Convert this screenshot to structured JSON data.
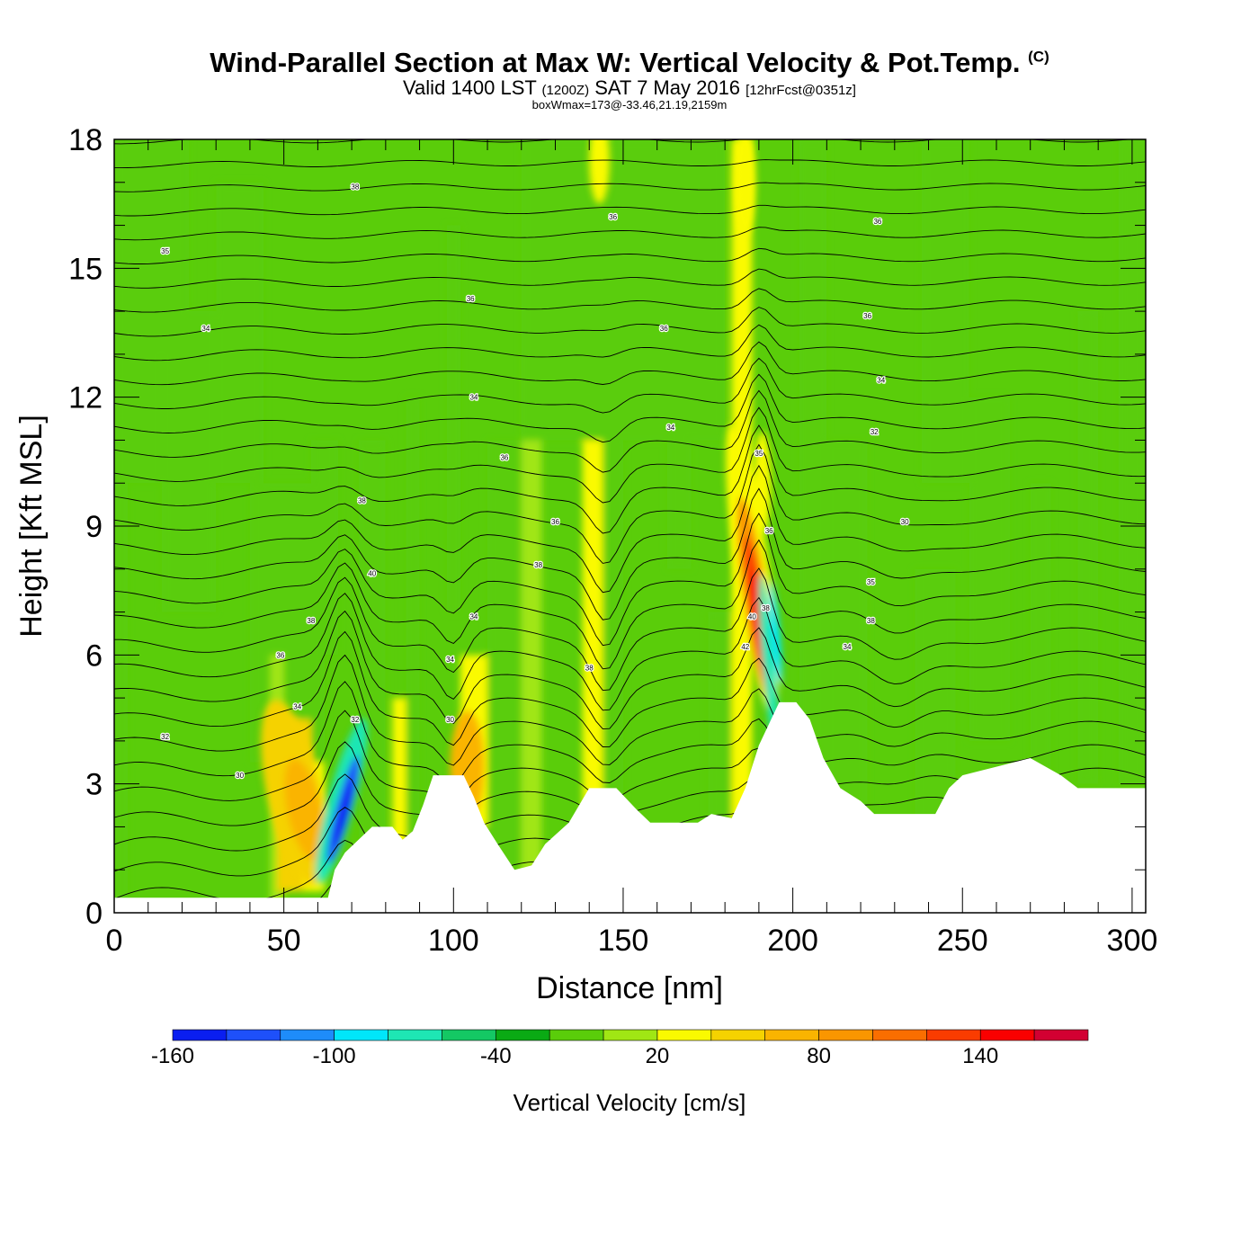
{
  "header": {
    "title": "Wind-Parallel Section at Max W: Vertical Velocity & Pot.Temp.",
    "copyright": "(C)",
    "valid_prefix": "Valid 1400 LST",
    "valid_utc": "(1200Z)",
    "valid_date": "SAT 7 May 2016",
    "forecast": "[12hrFcst@0351z]",
    "box_info": "boxWmax=173@-33.46,21.19,2159m"
  },
  "chart_data": {
    "type": "heatmap",
    "xlabel": "Distance [nm]",
    "ylabel": "Height [Kft MSL]",
    "xlim": [
      0,
      304
    ],
    "ylim": [
      0,
      18
    ],
    "x_ticks": [
      0,
      50,
      100,
      150,
      200,
      250,
      300
    ],
    "y_ticks": [
      0,
      3,
      6,
      9,
      12,
      15,
      18
    ],
    "colorbar": {
      "label": "Vertical Velocity [cm/s]",
      "range": [
        -160,
        180
      ],
      "bin_width": 20,
      "tick_values": [
        -160,
        -100,
        -40,
        20,
        80,
        140
      ],
      "colors": [
        "#0a1ef0",
        "#1e50fa",
        "#1e8cfa",
        "#00e6fa",
        "#1ee6b4",
        "#14c864",
        "#0aaa14",
        "#5acd0a",
        "#a0e614",
        "#fafa00",
        "#f5d200",
        "#fab400",
        "#fa9600",
        "#fa6e00",
        "#fa3c00",
        "#fa0000",
        "#d20032"
      ]
    },
    "terrain_kft": [
      [
        0,
        0.35
      ],
      [
        63,
        0.35
      ],
      [
        65,
        1.0
      ],
      [
        68,
        1.4
      ],
      [
        72,
        1.7
      ],
      [
        76,
        2.0
      ],
      [
        82,
        2.0
      ],
      [
        85,
        1.7
      ],
      [
        88,
        1.9
      ],
      [
        91,
        2.5
      ],
      [
        94,
        3.2
      ],
      [
        103,
        3.2
      ],
      [
        106,
        2.7
      ],
      [
        109,
        2.1
      ],
      [
        113,
        1.6
      ],
      [
        118,
        1.0
      ],
      [
        123,
        1.1
      ],
      [
        127,
        1.6
      ],
      [
        134,
        2.1
      ],
      [
        140,
        2.9
      ],
      [
        148,
        2.9
      ],
      [
        154,
        2.4
      ],
      [
        158,
        2.1
      ],
      [
        172,
        2.1
      ],
      [
        176,
        2.3
      ],
      [
        182,
        2.2
      ],
      [
        186,
        2.9
      ],
      [
        190,
        3.9
      ],
      [
        196,
        4.9
      ],
      [
        201,
        4.9
      ],
      [
        205,
        4.5
      ],
      [
        209,
        3.6
      ],
      [
        214,
        2.9
      ],
      [
        220,
        2.6
      ],
      [
        224,
        2.3
      ],
      [
        242,
        2.3
      ],
      [
        246,
        2.9
      ],
      [
        250,
        3.2
      ],
      [
        260,
        3.4
      ],
      [
        270,
        3.6
      ],
      [
        279,
        3.2
      ],
      [
        284,
        2.9
      ],
      [
        304,
        2.9
      ]
    ],
    "theta_contour_labels": [
      {
        "x": 15,
        "y": 4.1,
        "text": "32"
      },
      {
        "x": 37,
        "y": 3.2,
        "text": "30"
      },
      {
        "x": 49,
        "y": 6.0,
        "text": "36"
      },
      {
        "x": 54,
        "y": 4.8,
        "text": "34"
      },
      {
        "x": 58,
        "y": 6.8,
        "text": "38"
      },
      {
        "x": 27,
        "y": 13.6,
        "text": "34"
      },
      {
        "x": 15,
        "y": 15.4,
        "text": "35"
      },
      {
        "x": 71,
        "y": 16.9,
        "text": "38"
      },
      {
        "x": 73,
        "y": 9.6,
        "text": "38"
      },
      {
        "x": 76,
        "y": 7.9,
        "text": "40"
      },
      {
        "x": 71,
        "y": 4.5,
        "text": "32"
      },
      {
        "x": 99,
        "y": 5.9,
        "text": "34"
      },
      {
        "x": 99,
        "y": 4.5,
        "text": "30"
      },
      {
        "x": 106,
        "y": 6.9,
        "text": "34"
      },
      {
        "x": 105,
        "y": 14.3,
        "text": "36"
      },
      {
        "x": 106,
        "y": 12.0,
        "text": "34"
      },
      {
        "x": 115,
        "y": 10.6,
        "text": "36"
      },
      {
        "x": 125,
        "y": 8.1,
        "text": "38"
      },
      {
        "x": 130,
        "y": 9.1,
        "text": "36"
      },
      {
        "x": 140,
        "y": 5.7,
        "text": "38"
      },
      {
        "x": 147,
        "y": 16.2,
        "text": "36"
      },
      {
        "x": 162,
        "y": 13.6,
        "text": "36"
      },
      {
        "x": 164,
        "y": 11.3,
        "text": "34"
      },
      {
        "x": 186,
        "y": 6.2,
        "text": "42"
      },
      {
        "x": 188,
        "y": 6.9,
        "text": "40"
      },
      {
        "x": 190,
        "y": 10.7,
        "text": "35"
      },
      {
        "x": 192,
        "y": 7.1,
        "text": "38"
      },
      {
        "x": 193,
        "y": 8.9,
        "text": "36"
      },
      {
        "x": 216,
        "y": 6.2,
        "text": "34"
      },
      {
        "x": 222,
        "y": 13.9,
        "text": "36"
      },
      {
        "x": 223,
        "y": 7.7,
        "text": "35"
      },
      {
        "x": 223,
        "y": 6.8,
        "text": "38"
      },
      {
        "x": 224,
        "y": 11.2,
        "text": "32"
      },
      {
        "x": 225,
        "y": 16.1,
        "text": "36"
      },
      {
        "x": 226,
        "y": 12.4,
        "text": "34"
      },
      {
        "x": 233,
        "y": 9.1,
        "text": "30"
      }
    ]
  }
}
